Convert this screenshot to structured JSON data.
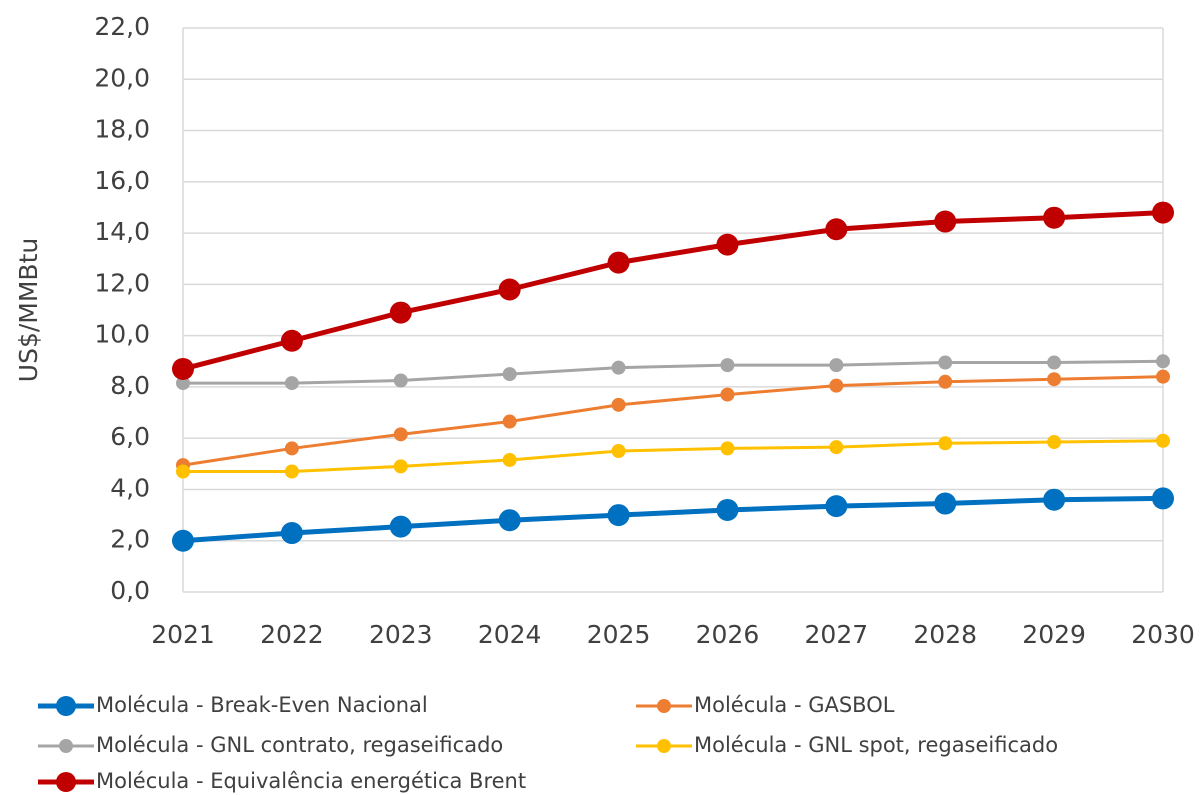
{
  "chart_data": {
    "type": "line",
    "y_label": "US$/MMBtu",
    "categories": [
      "2021",
      "2022",
      "2023",
      "2024",
      "2025",
      "2026",
      "2027",
      "2028",
      "2029",
      "2030"
    ],
    "ylim": [
      0,
      22
    ],
    "yticks": [
      {
        "value": 0,
        "label": "0,0"
      },
      {
        "value": 2,
        "label": "2,0"
      },
      {
        "value": 4,
        "label": "4,0"
      },
      {
        "value": 6,
        "label": "6,0"
      },
      {
        "value": 8,
        "label": "8,0"
      },
      {
        "value": 10,
        "label": "10,0"
      },
      {
        "value": 12,
        "label": "12,0"
      },
      {
        "value": 14,
        "label": "14,0"
      },
      {
        "value": 16,
        "label": "16,0"
      },
      {
        "value": 18,
        "label": "18,0"
      },
      {
        "value": 20,
        "label": "20,0"
      },
      {
        "value": 22,
        "label": "22,0"
      }
    ],
    "grid": true,
    "legend": "bottom",
    "series": [
      {
        "name": "Molécula - Break-Even Nacional",
        "color": "#0070c0",
        "values": [
          2.0,
          2.3,
          2.55,
          2.8,
          3.0,
          3.2,
          3.35,
          3.45,
          3.6,
          3.65
        ]
      },
      {
        "name": "Molécula - GASBOL",
        "color": "#ed7d31",
        "values": [
          4.95,
          5.6,
          6.15,
          6.65,
          7.3,
          7.7,
          8.05,
          8.2,
          8.3,
          8.4
        ]
      },
      {
        "name": "Molécula - GNL contrato, regaseificado",
        "color": "#a5a5a5",
        "values": [
          8.15,
          8.15,
          8.25,
          8.5,
          8.75,
          8.85,
          8.85,
          8.95,
          8.95,
          9.0
        ]
      },
      {
        "name": "Molécula - GNL spot, regaseificado",
        "color": "#ffc000",
        "values": [
          4.7,
          4.7,
          4.9,
          5.15,
          5.5,
          5.6,
          5.65,
          5.8,
          5.85,
          5.9
        ]
      },
      {
        "name": "Molécula - Equivalência energética Brent",
        "color": "#c00000",
        "values": [
          8.7,
          9.8,
          10.9,
          11.8,
          12.85,
          13.55,
          14.15,
          14.45,
          14.6,
          14.8
        ]
      }
    ]
  }
}
